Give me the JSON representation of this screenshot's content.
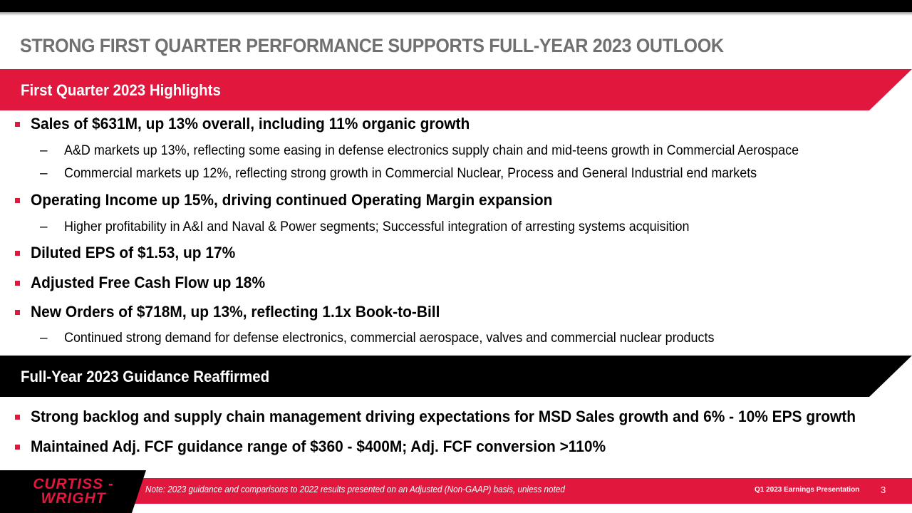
{
  "slide": {
    "title": "STRONG FIRST QUARTER PERFORMANCE SUPPORTS FULL-YEAR 2023 OUTLOOK",
    "section1_heading": "First Quarter 2023 Highlights",
    "section2_heading": "Full-Year 2023 Guidance Reaffirmed",
    "highlights": [
      {
        "text": "Sales of $631M, up 13% overall, including 11% organic growth"
      },
      {
        "sub": "A&D markets up 13%, reflecting some easing in defense electronics supply chain and mid-teens growth in Commercial Aerospace"
      },
      {
        "sub": "Commercial markets up 12%, reflecting strong growth in Commercial Nuclear, Process and General Industrial end markets"
      },
      {
        "text": "Operating Income up 15%, driving continued Operating Margin expansion"
      },
      {
        "sub": "Higher profitability in A&I and Naval & Power segments; Successful integration of arresting systems acquisition"
      },
      {
        "text": "Diluted EPS of $1.53, up 17%"
      },
      {
        "text": "Adjusted Free Cash Flow up 18%"
      },
      {
        "text": "New Orders of $718M, up 13%, reflecting 1.1x Book-to-Bill"
      },
      {
        "sub": "Continued strong demand for defense electronics, commercial aerospace, valves and commercial nuclear products"
      }
    ],
    "guidance": [
      "Strong backlog and supply chain management driving expectations for MSD Sales growth and 6% - 10% EPS growth",
      "Maintained Adj. FCF guidance range of $360 - $400M; Adj. FCF conversion >110%"
    ],
    "sub_bullet_marker": "–"
  },
  "footer": {
    "logo_line1": "CURTISS -",
    "logo_line2": "WRIGHT",
    "note": "Note: 2023 guidance and comparisons to 2022 results presented on an Adjusted (Non-GAAP) basis, unless noted",
    "presentation": "Q1 2023 Earnings Presentation",
    "page_number": "3"
  },
  "colors": {
    "accent_red": "#e1173e",
    "title_gray": "#707070",
    "black": "#000000"
  }
}
